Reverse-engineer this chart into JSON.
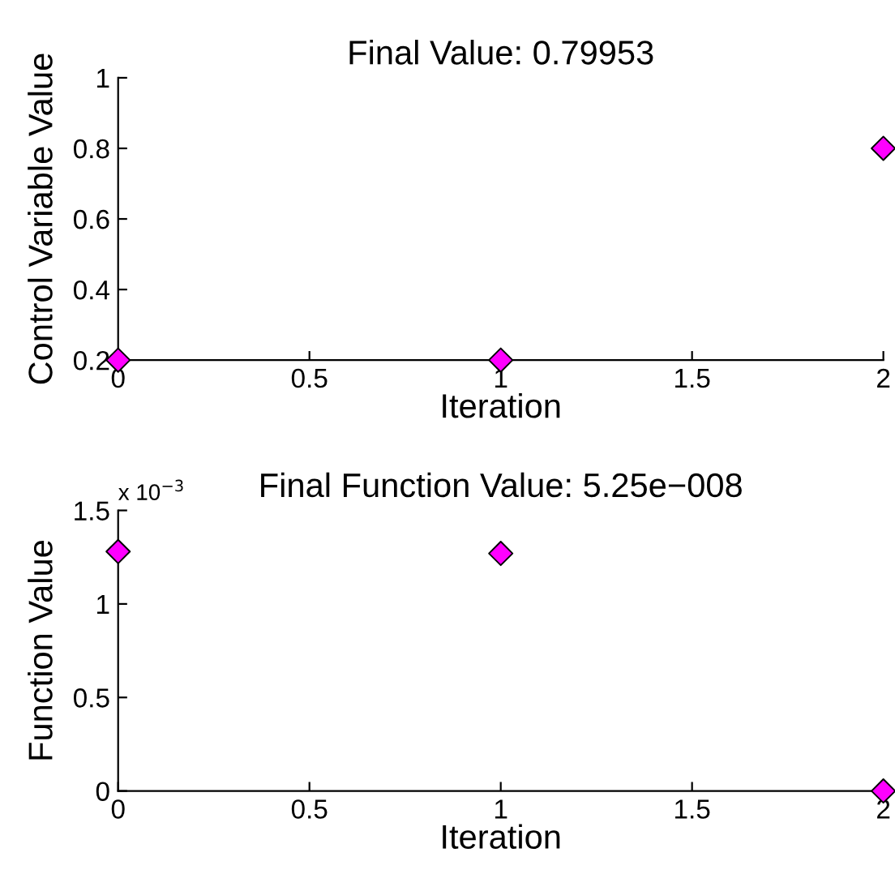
{
  "chart_data": [
    {
      "type": "scatter",
      "title": "Final Value: 0.79953",
      "xlabel": "Iteration",
      "ylabel": "Control Variable Value",
      "x": [
        0,
        1,
        2
      ],
      "values": [
        0.2,
        0.2,
        0.8
      ],
      "color": "#ff00ff",
      "marker": "diamond",
      "xlim": [
        0,
        2
      ],
      "xticks": [
        0,
        0.5,
        1,
        1.5,
        2
      ],
      "ylim": [
        0.2,
        1
      ],
      "yticks": [
        0.2,
        0.4,
        0.6,
        0.8,
        1
      ],
      "grid": false
    },
    {
      "type": "scatter",
      "title": "Final Function Value: 5.25e−008",
      "xlabel": "Iteration",
      "ylabel": "Function Value",
      "annotations": [
        "x 10$^{−3}$"
      ],
      "x": [
        0,
        1,
        2
      ],
      "values": [
        1.28,
        1.27,
        0
      ],
      "color": "#ff00ff",
      "marker": "diamond",
      "xlim": [
        0,
        2
      ],
      "xticks": [
        0,
        0.5,
        1,
        1.5,
        2
      ],
      "ylim": [
        0,
        1.5
      ],
      "yticks": [
        0,
        0.5,
        1,
        1.5
      ],
      "grid": false
    }
  ]
}
